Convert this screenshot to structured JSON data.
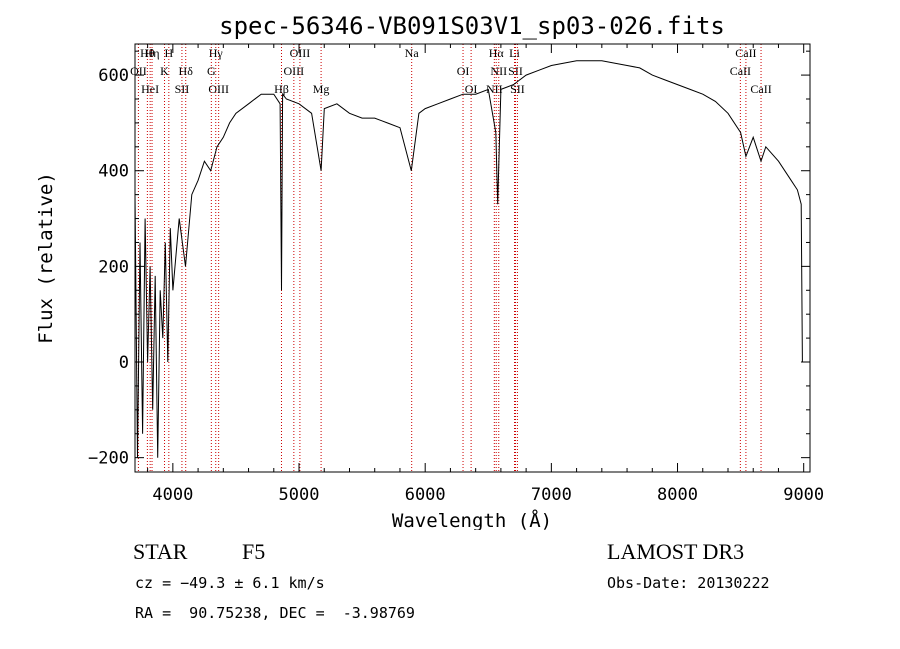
{
  "chart_data": {
    "type": "line",
    "title": "spec-56346-VB091S03V1_sp03-026.fits",
    "xlabel": "Wavelength (Å)",
    "ylabel": "Flux (relative)",
    "xlim": [
      3700,
      9050
    ],
    "ylim": [
      -230,
      665
    ],
    "x_ticks": [
      4000,
      5000,
      6000,
      7000,
      8000,
      9000
    ],
    "x_tick_labels": [
      "4000",
      "5000",
      "6000",
      "7000",
      "8000",
      "9000"
    ],
    "y_ticks": [
      -200,
      0,
      200,
      400,
      600
    ],
    "y_tick_labels": [
      "−200",
      "0",
      "200",
      "400",
      "600"
    ],
    "spectrum": {
      "x": [
        3700,
        3720,
        3740,
        3760,
        3780,
        3800,
        3820,
        3840,
        3860,
        3880,
        3900,
        3920,
        3940,
        3960,
        3980,
        4000,
        4050,
        4100,
        4150,
        4200,
        4250,
        4300,
        4350,
        4400,
        4450,
        4500,
        4600,
        4700,
        4800,
        4850,
        4861,
        4870,
        4900,
        5000,
        5100,
        5175,
        5200,
        5300,
        5400,
        5500,
        5600,
        5700,
        5800,
        5890,
        5950,
        6000,
        6100,
        6200,
        6300,
        6400,
        6500,
        6560,
        6575,
        6600,
        6700,
        6800,
        6900,
        7000,
        7100,
        7200,
        7300,
        7400,
        7500,
        7600,
        7700,
        7800,
        7900,
        8000,
        8100,
        8200,
        8300,
        8400,
        8500,
        8542,
        8600,
        8662,
        8700,
        8800,
        8900,
        8950,
        8980,
        8990,
        9000
      ],
      "y": [
        350,
        -200,
        250,
        -150,
        300,
        0,
        200,
        -100,
        180,
        -200,
        150,
        50,
        250,
        0,
        280,
        150,
        300,
        200,
        350,
        380,
        420,
        400,
        450,
        470,
        500,
        520,
        540,
        560,
        560,
        540,
        150,
        560,
        550,
        540,
        520,
        400,
        530,
        540,
        520,
        510,
        510,
        500,
        490,
        400,
        520,
        530,
        540,
        550,
        560,
        560,
        570,
        480,
        330,
        570,
        580,
        600,
        610,
        620,
        625,
        630,
        630,
        630,
        625,
        620,
        615,
        600,
        590,
        580,
        570,
        560,
        545,
        520,
        480,
        430,
        470,
        420,
        450,
        420,
        380,
        360,
        330,
        0,
        0
      ]
    },
    "lines": [
      {
        "label": "Hθ",
        "x": 3798
      },
      {
        "label": "OII",
        "x": 3727
      },
      {
        "label": "HeI",
        "x": 3820
      },
      {
        "label": "Hη",
        "x": 3835
      },
      {
        "label": "K",
        "x": 3934
      },
      {
        "label": "SII",
        "x": 4072
      },
      {
        "label": "H",
        "x": 3968
      },
      {
        "label": "Hδ",
        "x": 4102
      },
      {
        "label": "OIII",
        "x": 4363
      },
      {
        "label": "Hγ",
        "x": 4340
      },
      {
        "label": "G",
        "x": 4305
      },
      {
        "label": "Hβ",
        "x": 4861
      },
      {
        "label": "OIII",
        "x": 5007
      },
      {
        "label": "OIII",
        "x": 4959
      },
      {
        "label": "Mg",
        "x": 5175
      },
      {
        "label": "Na",
        "x": 5893
      },
      {
        "label": "OI",
        "x": 6300
      },
      {
        "label": "OI",
        "x": 6364
      },
      {
        "label": "Hα",
        "x": 6563
      },
      {
        "label": "SII",
        "x": 6716
      },
      {
        "label": "NII",
        "x": 6548
      },
      {
        "label": "Li",
        "x": 6708
      },
      {
        "label": "NII",
        "x": 6583
      },
      {
        "label": "SII",
        "x": 6731
      },
      {
        "label": "CaII",
        "x": 8542
      },
      {
        "label": "CaII",
        "x": 8498
      },
      {
        "label": "CaII",
        "x": 8662
      }
    ]
  },
  "info": {
    "class": "STAR",
    "subclass": "F5",
    "survey": "LAMOST DR3",
    "cz": "cz = −49.3 ± 6.1 km/s",
    "obs_date": "Obs-Date: 20130222",
    "coords": "RA =  90.75238, DEC =  -3.98769"
  },
  "colors": {
    "axis": "#000000",
    "spectrum": "#000000",
    "lines": "#cc0000"
  }
}
